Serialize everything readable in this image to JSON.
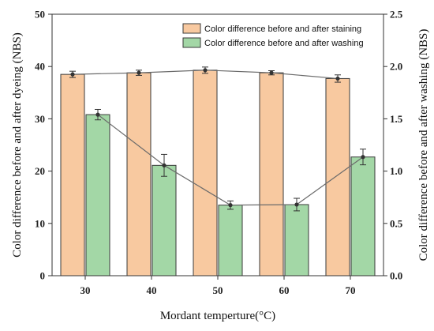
{
  "chart_data": {
    "type": "bar",
    "categories": [
      "30",
      "40",
      "50",
      "60",
      "70"
    ],
    "xlabel": "Mordant temperture(°C)",
    "ylabel_left": "Color difference before and after dyeing (NBS)",
    "ylabel_right": "Color difference before and after washing (NBS)",
    "ylim_left": [
      0,
      50
    ],
    "ylim_right": [
      0,
      2.5
    ],
    "yticks_left": [
      "0",
      "10",
      "20",
      "30",
      "40",
      "50"
    ],
    "yticks_right": [
      "0.0",
      "0.5",
      "1.0",
      "1.5",
      "2.0",
      "2.5"
    ],
    "legend_position": "top-right",
    "grid": false,
    "series": [
      {
        "name": "Color difference before and after staining",
        "axis": "left",
        "values": [
          38.5,
          38.8,
          39.3,
          38.8,
          37.7
        ],
        "errors": [
          0.6,
          0.5,
          0.6,
          0.4,
          0.7
        ],
        "color": "#f8c9a0",
        "line": true
      },
      {
        "name": "Color difference before and after washing",
        "axis": "left",
        "values": [
          30.8,
          21.1,
          13.5,
          13.6,
          22.7
        ],
        "errors": [
          1.0,
          2.1,
          0.8,
          1.2,
          1.5
        ],
        "color": "#a3d7a6",
        "line": true
      }
    ]
  }
}
